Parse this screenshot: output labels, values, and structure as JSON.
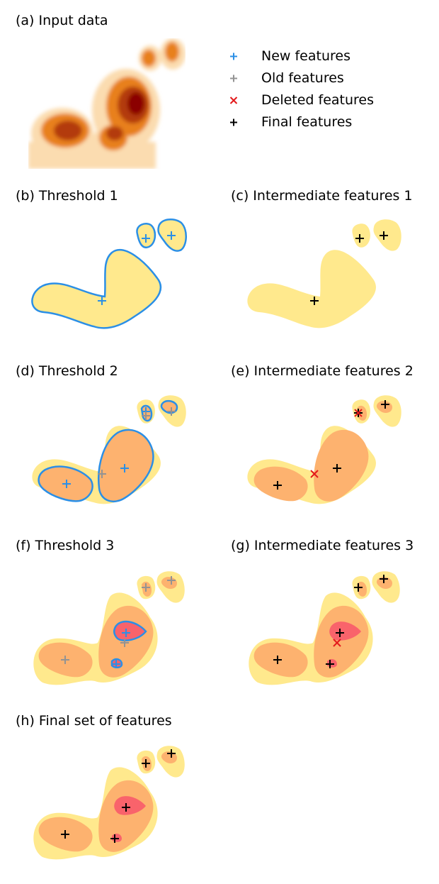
{
  "panels": {
    "a": "(a) Input data",
    "b": "(b) Threshold 1",
    "c": "(c) Intermediate features 1",
    "d": "(d) Threshold 2",
    "e": "(e) Intermediate features 2",
    "f": "(f) Threshold 3",
    "g": "(g) Intermediate features 3",
    "h": "(h) Final set of features"
  },
  "legend": [
    {
      "marker": "plus",
      "color": "#2b8fe6",
      "label": "New features"
    },
    {
      "marker": "plus",
      "color": "#939393",
      "label": "Old features"
    },
    {
      "marker": "cross",
      "color": "#e31a1c",
      "label": "Deleted features"
    },
    {
      "marker": "plus",
      "color": "#000000",
      "label": "Final features"
    }
  ],
  "colors": {
    "level1": "#ffe98d",
    "level2": "#fdb26f",
    "level3": "#f9636b",
    "contour": "#2b8fe6",
    "heat_dark": "#8b0000",
    "heat_mid": "#e8801c",
    "heat_light": "#fbd9a8"
  }
}
